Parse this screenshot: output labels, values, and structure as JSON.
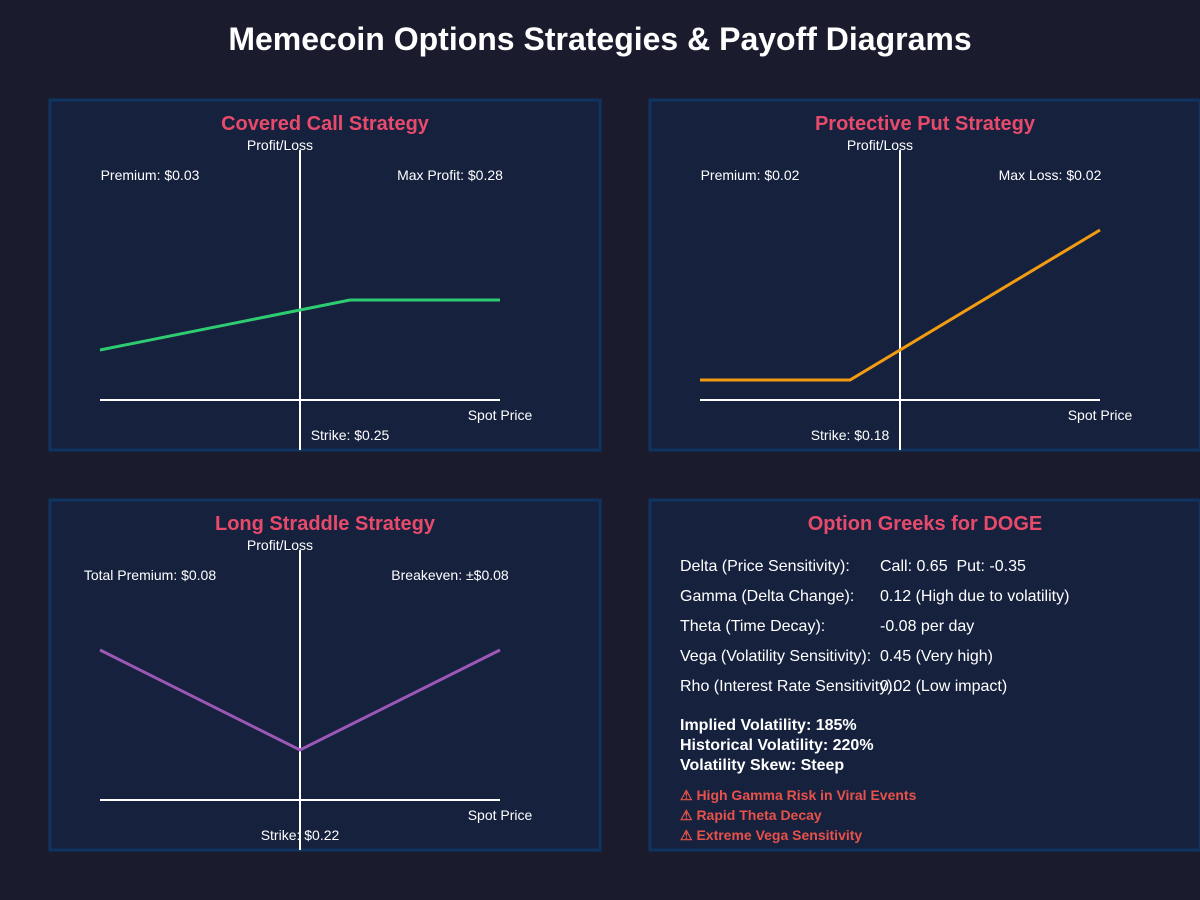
{
  "title": "Memecoin Options Strategies & Payoff Diagrams",
  "colors": {
    "background": "#1b1b2e",
    "panel_fill": "#16213e",
    "panel_border": "#0f3460",
    "accent": "#e84a6b",
    "axis": "#ffffff",
    "warning": "#e8524a"
  },
  "covered_call": {
    "title": "Covered Call Strategy",
    "y_axis_label": "Profit/Loss",
    "x_axis_label": "Spot Price",
    "premium_label": "Premium: $0.03",
    "info_label": "Max Profit: $0.28",
    "strike_label": "Strike: $0.25",
    "line_color": "#2ecc71"
  },
  "protective_put": {
    "title": "Protective Put Strategy",
    "y_axis_label": "Profit/Loss",
    "x_axis_label": "Spot Price",
    "premium_label": "Premium: $0.02",
    "info_label": "Max Loss: $0.02",
    "strike_label": "Strike: $0.18",
    "line_color": "#f39c12"
  },
  "long_straddle": {
    "title": "Long Straddle Strategy",
    "y_axis_label": "Profit/Loss",
    "x_axis_label": "Spot Price",
    "premium_label": "Total Premium: $0.08",
    "info_label": "Breakeven: ±$0.08",
    "strike_label": "Strike: $0.22",
    "line_color": "#9b59b6"
  },
  "greeks": {
    "title": "Option Greeks for DOGE",
    "rows": [
      {
        "name": "Delta (Price Sensitivity):",
        "value": "Call: 0.65  Put: -0.35"
      },
      {
        "name": "Gamma (Delta Change):",
        "value": "0.12 (High due to volatility)"
      },
      {
        "name": "Theta (Time Decay):",
        "value": "-0.08 per day"
      },
      {
        "name": "Vega (Volatility Sensitivity):",
        "value": "0.45 (Very high)"
      },
      {
        "name": "Rho (Interest Rate Sensitivity):",
        "value": "0.02 (Low impact)"
      }
    ],
    "volatility": [
      "Implied Volatility: 185%",
      "Historical Volatility: 220%",
      "Volatility Skew: Steep"
    ],
    "warnings": [
      "⚠ High Gamma Risk in Viral Events",
      "⚠ Rapid Theta Decay",
      "⚠ Extreme Vega Sensitivity"
    ]
  }
}
